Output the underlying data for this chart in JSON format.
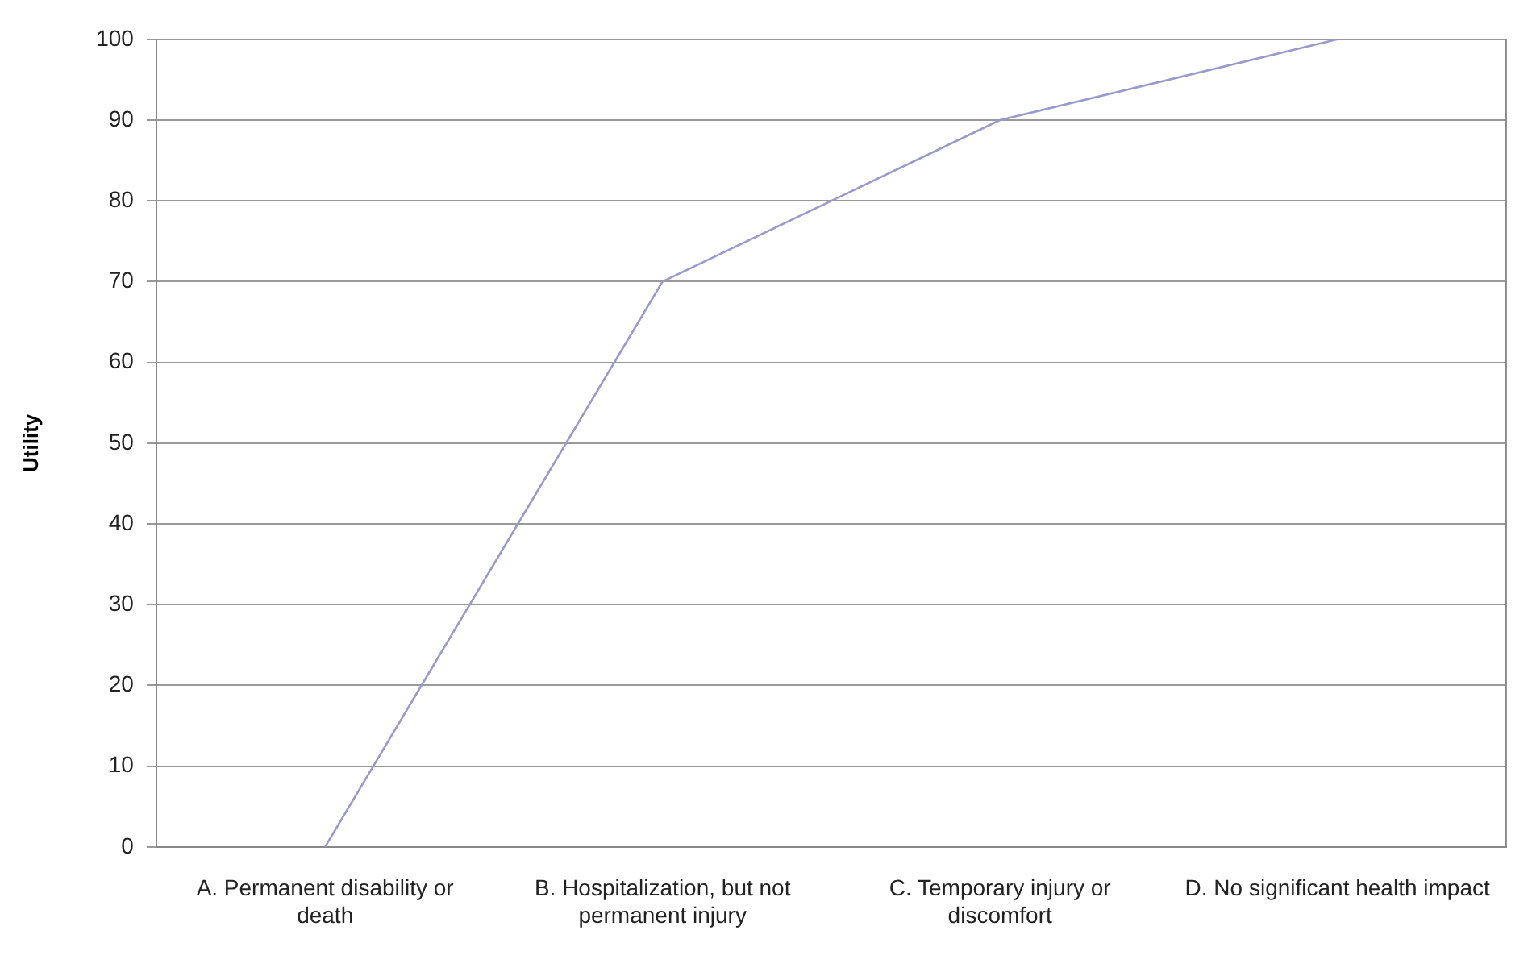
{
  "chart_data": {
    "type": "line",
    "ylabel": "Utility",
    "categories": [
      "A. Permanent disability or death",
      "B. Hospitalization, but not permanent injury",
      "C. Temporary injury or discomfort",
      "D. No significant health impact"
    ],
    "series": [
      {
        "color": "#9999cc",
        "values": [
          0,
          70,
          90,
          100
        ]
      }
    ],
    "ylim": [
      0,
      100
    ],
    "yticks": [
      0,
      10,
      20,
      30,
      40,
      50,
      60,
      70,
      80,
      90,
      100
    ],
    "grid": "y",
    "marker": "none",
    "line_style": "solid",
    "legend": false
  }
}
